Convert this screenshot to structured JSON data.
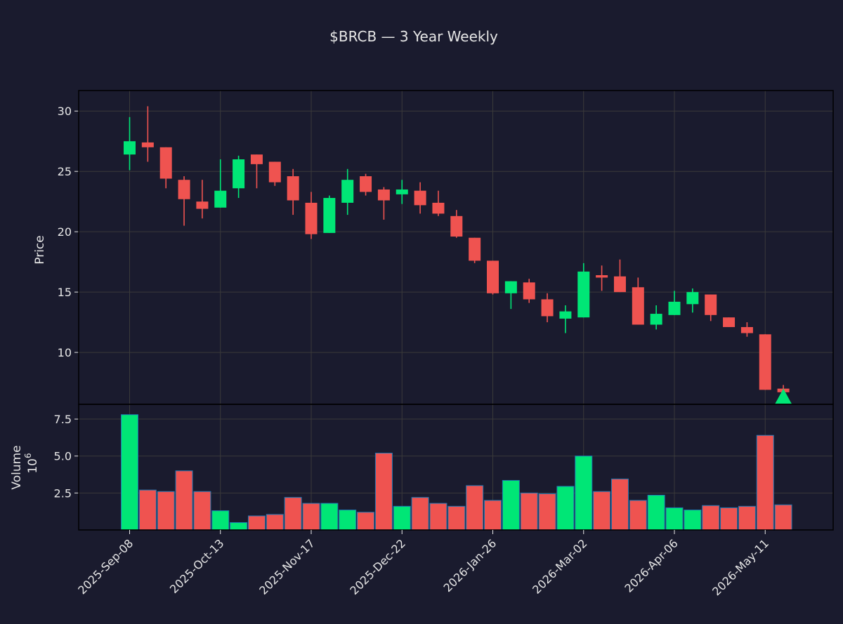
{
  "chart_data": {
    "type": "candlestick",
    "title": "$BRCB — 3 Year Weekly",
    "ylabel_price": "Price",
    "ylabel_volume": "Volume",
    "volume_multiplier_label": "10",
    "volume_multiplier_exponent": "6",
    "price_ylim": [
      5.7,
      31.7
    ],
    "volume_ylim": [
      0,
      8.5
    ],
    "price_yticks": [
      "10",
      "15",
      "20",
      "25",
      "30"
    ],
    "volume_yticks": [
      "2.5",
      "5.0",
      "7.5"
    ],
    "xtick_labels": [
      "2025-Sep-08",
      "2025-Oct-13",
      "2025-Nov-17",
      "2025-Dec-22",
      "2026-Jan-26",
      "2026-Mar-02",
      "2026-Apr-06",
      "2026-May-11"
    ],
    "xtick_indices": [
      0,
      5,
      10,
      15,
      20,
      25,
      30,
      35
    ],
    "grid": true,
    "colors": {
      "background": "#1a1b2e",
      "up": "#00e676",
      "down": "#ef5350",
      "grid": "#3a3a3a",
      "axis": "#000000",
      "text": "#e6e6e6",
      "volume_edge": "#1f77b4"
    },
    "marker": {
      "type": "triangle-up",
      "index": 36,
      "price": 6.3,
      "color": "#00e676"
    },
    "candles": [
      {
        "o": 26.4,
        "h": 29.5,
        "l": 25.1,
        "c": 27.5
      },
      {
        "o": 27.4,
        "h": 30.4,
        "l": 25.8,
        "c": 27.0
      },
      {
        "o": 27.0,
        "h": 27.0,
        "l": 23.6,
        "c": 24.4
      },
      {
        "o": 24.3,
        "h": 24.6,
        "l": 20.5,
        "c": 22.7
      },
      {
        "o": 22.5,
        "h": 24.3,
        "l": 21.1,
        "c": 21.9
      },
      {
        "o": 22.0,
        "h": 26.0,
        "l": 22.0,
        "c": 23.4
      },
      {
        "o": 23.6,
        "h": 26.3,
        "l": 22.8,
        "c": 26.0
      },
      {
        "o": 26.4,
        "h": 26.4,
        "l": 23.6,
        "c": 25.6
      },
      {
        "o": 25.8,
        "h": 25.8,
        "l": 23.8,
        "c": 24.1
      },
      {
        "o": 24.6,
        "h": 25.2,
        "l": 21.4,
        "c": 22.6
      },
      {
        "o": 22.4,
        "h": 23.3,
        "l": 19.4,
        "c": 19.8
      },
      {
        "o": 19.9,
        "h": 23.0,
        "l": 19.9,
        "c": 22.8
      },
      {
        "o": 22.4,
        "h": 25.2,
        "l": 21.4,
        "c": 24.3
      },
      {
        "o": 24.6,
        "h": 24.8,
        "l": 23.0,
        "c": 23.3
      },
      {
        "o": 23.5,
        "h": 23.7,
        "l": 21.0,
        "c": 22.6
      },
      {
        "o": 23.1,
        "h": 24.3,
        "l": 22.3,
        "c": 23.5
      },
      {
        "o": 23.4,
        "h": 24.1,
        "l": 21.5,
        "c": 22.2
      },
      {
        "o": 22.4,
        "h": 23.4,
        "l": 21.3,
        "c": 21.5
      },
      {
        "o": 21.3,
        "h": 21.8,
        "l": 19.5,
        "c": 19.6
      },
      {
        "o": 19.5,
        "h": 19.5,
        "l": 17.4,
        "c": 17.6
      },
      {
        "o": 17.6,
        "h": 17.6,
        "l": 14.8,
        "c": 14.9
      },
      {
        "o": 14.9,
        "h": 15.9,
        "l": 13.6,
        "c": 15.9
      },
      {
        "o": 15.8,
        "h": 16.1,
        "l": 14.1,
        "c": 14.4
      },
      {
        "o": 14.4,
        "h": 14.9,
        "l": 12.5,
        "c": 13.0
      },
      {
        "o": 12.8,
        "h": 13.9,
        "l": 11.6,
        "c": 13.4
      },
      {
        "o": 12.9,
        "h": 17.4,
        "l": 12.9,
        "c": 16.7
      },
      {
        "o": 16.4,
        "h": 17.2,
        "l": 15.1,
        "c": 16.2
      },
      {
        "o": 16.3,
        "h": 17.7,
        "l": 15.0,
        "c": 15.0
      },
      {
        "o": 15.4,
        "h": 16.2,
        "l": 12.3,
        "c": 12.3
      },
      {
        "o": 12.3,
        "h": 13.9,
        "l": 11.9,
        "c": 13.2
      },
      {
        "o": 13.1,
        "h": 15.1,
        "l": 13.1,
        "c": 14.2
      },
      {
        "o": 14.0,
        "h": 15.3,
        "l": 13.3,
        "c": 15.0
      },
      {
        "o": 14.8,
        "h": 14.8,
        "l": 12.6,
        "c": 13.1
      },
      {
        "o": 12.9,
        "h": 12.9,
        "l": 12.1,
        "c": 12.1
      },
      {
        "o": 12.1,
        "h": 12.5,
        "l": 11.3,
        "c": 11.6
      },
      {
        "o": 11.5,
        "h": 11.5,
        "l": 6.9,
        "c": 6.9
      },
      {
        "o": 7.0,
        "h": 7.3,
        "l": 6.6,
        "c": 6.7
      }
    ],
    "volumes": [
      7.8,
      2.7,
      2.6,
      4.0,
      2.6,
      1.3,
      0.5,
      0.95,
      1.05,
      2.2,
      1.8,
      1.8,
      1.35,
      1.2,
      5.2,
      1.6,
      2.2,
      1.8,
      1.6,
      3.0,
      2.0,
      3.35,
      2.5,
      2.45,
      2.95,
      5.0,
      2.6,
      3.45,
      2.0,
      2.35,
      1.5,
      1.35,
      1.65,
      1.5,
      1.6,
      6.4,
      1.7
    ]
  }
}
